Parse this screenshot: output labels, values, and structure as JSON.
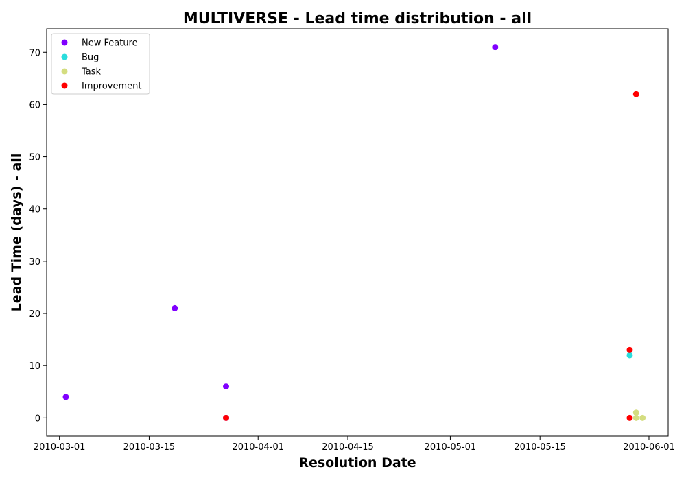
{
  "chart_data": {
    "type": "scatter",
    "title": "MULTIVERSE - Lead time distribution - all",
    "xlabel": "Resolution Date",
    "ylabel": "Lead Time (days) - all",
    "x_ticks": [
      "2010-03-01",
      "2010-03-15",
      "2010-04-01",
      "2010-04-15",
      "2010-05-01",
      "2010-05-15",
      "2010-06-01"
    ],
    "y_ticks": [
      "0",
      "10",
      "20",
      "30",
      "40",
      "50",
      "60",
      "70"
    ],
    "xlim": [
      "2010-02-27",
      "2010-06-04"
    ],
    "ylim": [
      -3.5,
      74.5
    ],
    "grid": false,
    "legend_position": "top-left",
    "series": [
      {
        "name": "New Feature",
        "color": "#8000ff",
        "points": [
          {
            "x": "2010-03-02",
            "y": 4
          },
          {
            "x": "2010-03-19",
            "y": 21
          },
          {
            "x": "2010-03-27",
            "y": 6
          },
          {
            "x": "2010-03-27",
            "y": 0
          },
          {
            "x": "2010-05-08",
            "y": 71
          }
        ]
      },
      {
        "name": "Bug",
        "color": "#2adddd",
        "points": [
          {
            "x": "2010-05-29",
            "y": 12
          }
        ]
      },
      {
        "name": "Task",
        "color": "#d4dd80",
        "points": [
          {
            "x": "2010-05-30",
            "y": 0
          },
          {
            "x": "2010-05-30",
            "y": 1
          },
          {
            "x": "2010-05-31",
            "y": 0
          }
        ]
      },
      {
        "name": "Improvement",
        "color": "#ff0000",
        "points": [
          {
            "x": "2010-03-27",
            "y": 0
          },
          {
            "x": "2010-05-29",
            "y": 13
          },
          {
            "x": "2010-05-29",
            "y": 0
          },
          {
            "x": "2010-05-30",
            "y": 62
          }
        ]
      }
    ]
  }
}
